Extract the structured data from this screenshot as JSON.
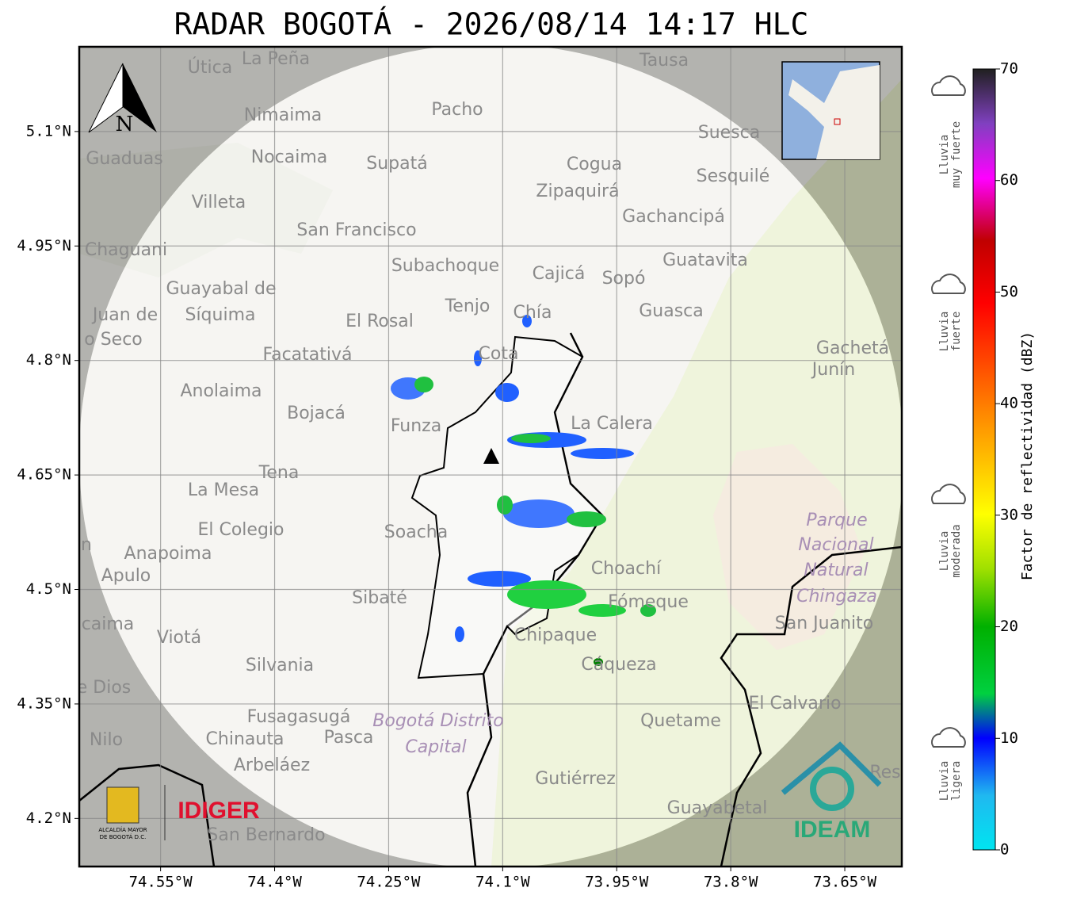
{
  "title": "RADAR BOGOTÁ - 2026/08/14 14:17 HLC",
  "map": {
    "lonlim": [
      -74.657,
      -73.575
    ],
    "latlim": [
      4.137,
      5.211
    ],
    "grid": true,
    "lon_ticks": [
      {
        "value": -74.55,
        "label": "74.55°W"
      },
      {
        "value": -74.4,
        "label": "74.4°W"
      },
      {
        "value": -74.25,
        "label": "74.25°W"
      },
      {
        "value": -74.1,
        "label": "74.1°W"
      },
      {
        "value": -73.95,
        "label": "73.95°W"
      },
      {
        "value": -73.8,
        "label": "73.8°W"
      },
      {
        "value": -73.65,
        "label": "73.65°W"
      }
    ],
    "lat_ticks": [
      {
        "value": 5.1,
        "label": "5.1°N"
      },
      {
        "value": 4.95,
        "label": "4.95°N"
      },
      {
        "value": 4.8,
        "label": "4.8°N"
      },
      {
        "value": 4.65,
        "label": "4.65°N"
      },
      {
        "value": 4.5,
        "label": "4.5°N"
      },
      {
        "value": 4.35,
        "label": "4.35°N"
      },
      {
        "value": 4.2,
        "label": "4.2°N"
      }
    ],
    "places": [
      "La Peña",
      "Útica",
      "Tausa",
      "Pacho",
      "Nimaima",
      "Suesca",
      "Guaduas",
      "Nocaima",
      "Supatá",
      "Cogua",
      "Sesquilé",
      "Zipaquirá",
      "Villeta",
      "Gachancipá",
      "San Francisco",
      "Chaguani",
      "Guatavita",
      "Subachoque",
      "Cajicá",
      "Sopó",
      "Guayabal de",
      "Síquima",
      "Juan de",
      "Tenjo",
      "Chía",
      "Guasca",
      "El Rosal",
      "o Seco",
      "Cota",
      "Gachetá",
      "Junín",
      "Facatativá",
      "Anolaima",
      "Bojacá",
      "La Calera",
      "Funza",
      "Tena",
      "La Mesa",
      "El Colegio",
      "Soacha",
      "n",
      "Anapoima",
      "Choachí",
      "Apulo",
      "Sibaté",
      "Fómeque",
      "San Juanito",
      "caima",
      "Chipaque",
      "Viotá",
      "Silvania",
      "Cáqueza",
      "e Dios",
      "El Calvario",
      "Fusagasugá",
      "Quetame",
      "Nilo",
      "Chinauta",
      "Pasca",
      "Arbeláez",
      "Gutiérrez",
      "Res",
      "Guayabetal",
      "San Bernardo"
    ],
    "special_labels": [
      "Parque",
      "Nacional",
      "Natural",
      "Chingaza",
      "Bogotá Distrito",
      "Capital"
    ]
  },
  "colorbar": {
    "label": "Factor de reflectividad (dBZ)",
    "lim": [
      0,
      70
    ],
    "ticks": [
      0,
      10,
      20,
      30,
      40,
      50,
      60,
      70
    ],
    "categories": [
      [
        "Lluvia",
        "muy fuerte"
      ],
      [
        "Lluvia",
        "fuerte"
      ],
      [
        "Lluvia",
        "moderada"
      ],
      [
        "Lluvia",
        "ligera"
      ]
    ]
  },
  "compass": "N",
  "logos": {
    "alcaldia": [
      "ALCALDÍA MAYOR",
      "DE BOGOTÁ D.C."
    ],
    "idiger": "IDIGER",
    "ideam": "IDEAM"
  }
}
